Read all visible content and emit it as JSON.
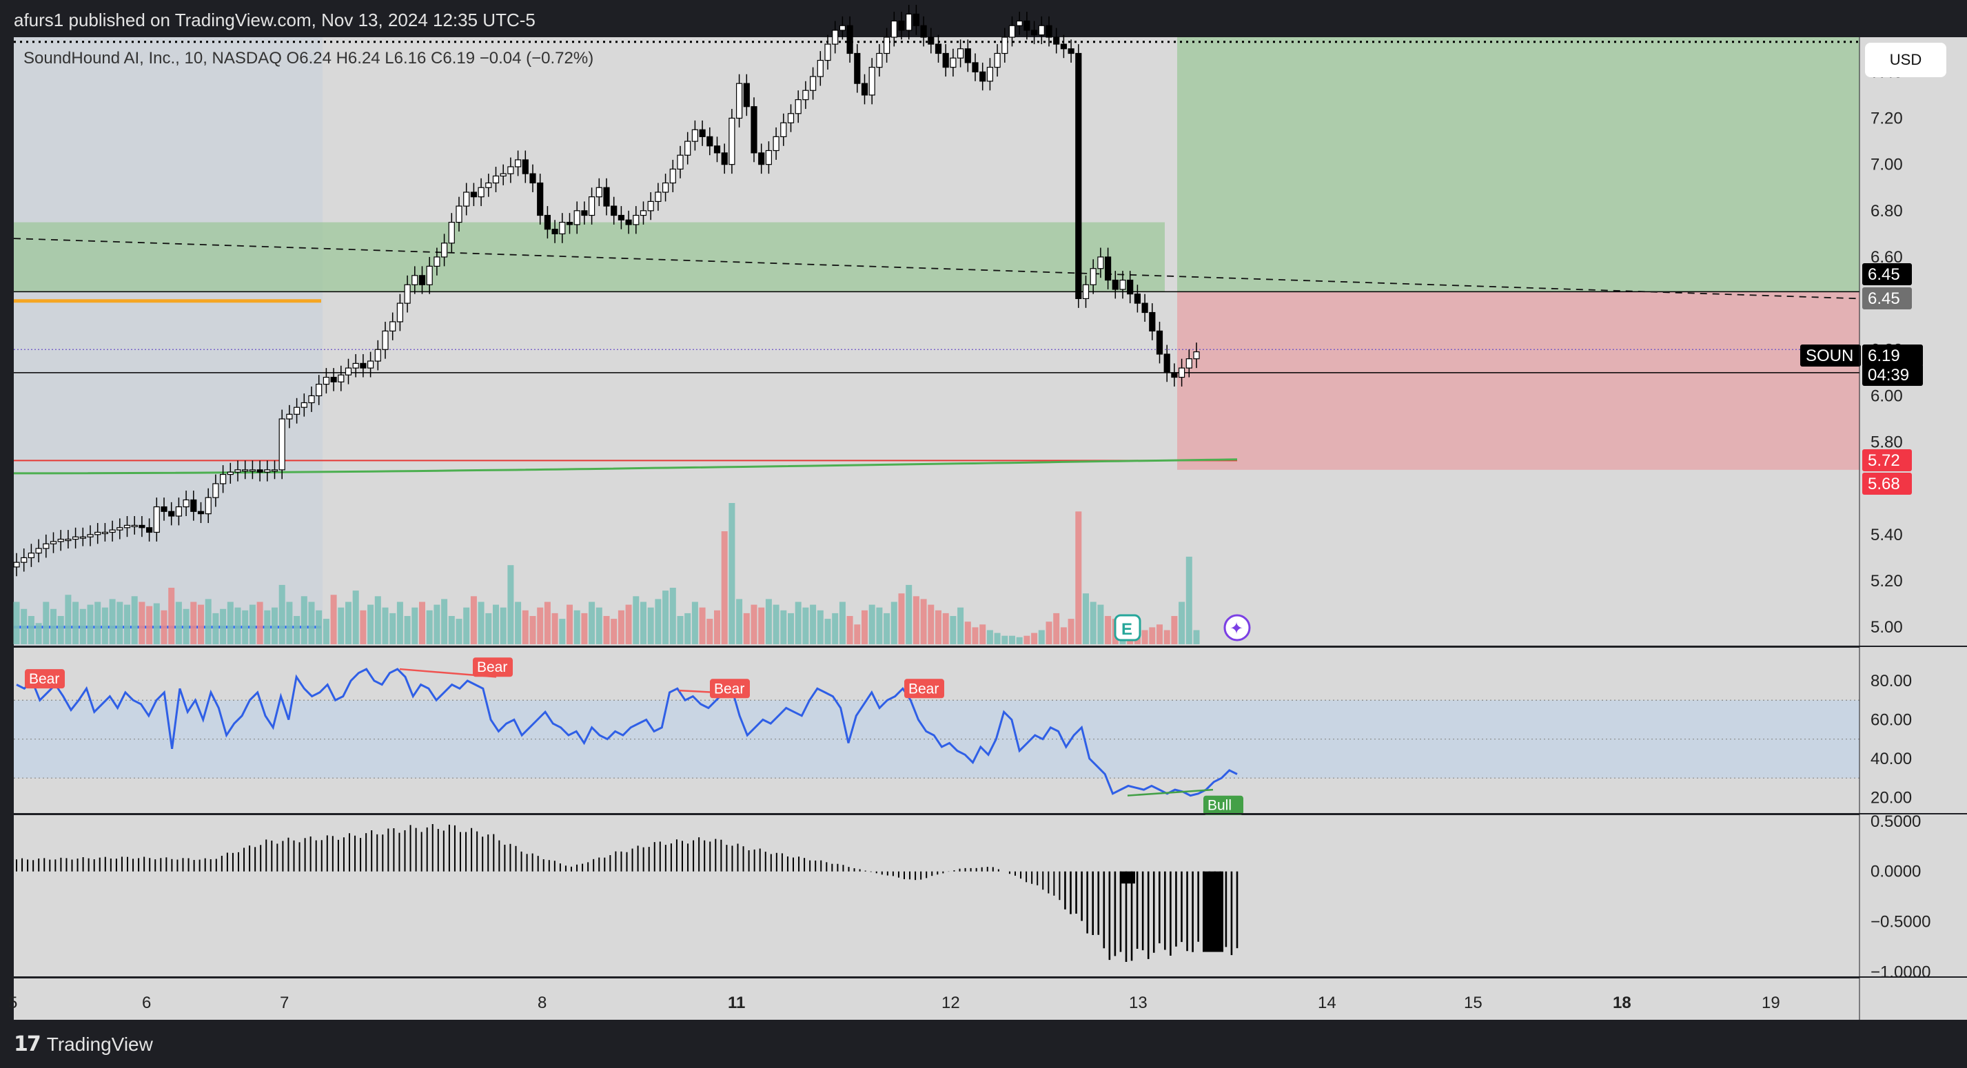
{
  "header": {
    "text": "afurs1 published on TradingView.com, Nov 13, 2024 12:35 UTC-5"
  },
  "footer": {
    "brand": "TradingView"
  },
  "currency": "USD",
  "colors": {
    "background": "#d9d9d9",
    "frame": "#1e1f24",
    "up_candle": "#ffffff",
    "down_candle": "#000000",
    "vol_up": "#7ec0b8",
    "vol_down": "#e58c8c",
    "rsi_line": "#2f5fe6",
    "rsi_band": "#c9d5e3",
    "profit_zone": "#9dc79b",
    "loss_zone": "#e6a3a7",
    "ema_line": "#4caf50",
    "bear_label": "#f05350",
    "bull_label": "#43a047",
    "blue_level": "#2962ff",
    "orange_level": "#f5a623"
  },
  "chart_data": [
    {
      "type": "candlestick",
      "title": "SoundHound AI, Inc., 10, NASDAQ",
      "ohlc_readout": {
        "open_label": "O",
        "open": "6.24",
        "high_label": "H",
        "high": "6.24",
        "low_label": "L",
        "low": "6.16",
        "close_label": "C",
        "close": "6.19",
        "change": "−0.04 (−0.72%)"
      },
      "ylim": [
        4.92,
        7.55
      ],
      "y_ticks": [
        "7.40",
        "7.20",
        "7.00",
        "6.80",
        "6.60",
        "6.40",
        "6.20",
        "6.00",
        "5.80",
        "5.60",
        "5.40",
        "5.20",
        "5.00"
      ],
      "x_ticks": [
        {
          "label": "5",
          "bold": false
        },
        {
          "label": "6",
          "bold": false
        },
        {
          "label": "7",
          "bold": false
        },
        {
          "label": "8",
          "bold": false
        },
        {
          "label": "11",
          "bold": true
        },
        {
          "label": "12",
          "bold": false
        },
        {
          "label": "13",
          "bold": false
        },
        {
          "label": "14",
          "bold": false
        },
        {
          "label": "15",
          "bold": false
        },
        {
          "label": "18",
          "bold": true
        },
        {
          "label": "19",
          "bold": false
        }
      ],
      "price_path": [
        [
          0,
          5.28
        ],
        [
          1,
          5.3
        ],
        [
          2,
          5.32
        ],
        [
          3,
          5.34
        ],
        [
          4,
          5.36
        ],
        [
          5,
          5.37
        ],
        [
          6,
          5.38
        ],
        [
          7,
          5.38
        ],
        [
          8,
          5.39
        ],
        [
          9,
          5.39
        ],
        [
          10,
          5.4
        ],
        [
          11,
          5.41
        ],
        [
          12,
          5.41
        ],
        [
          13,
          5.42
        ],
        [
          14,
          5.43
        ],
        [
          15,
          5.44
        ],
        [
          16,
          5.44
        ],
        [
          17,
          5.43
        ],
        [
          18,
          5.41
        ],
        [
          19,
          5.52
        ],
        [
          20,
          5.5
        ],
        [
          21,
          5.48
        ],
        [
          22,
          5.52
        ],
        [
          23,
          5.55
        ],
        [
          24,
          5.5
        ],
        [
          25,
          5.49
        ],
        [
          26,
          5.56
        ],
        [
          27,
          5.62
        ],
        [
          28,
          5.66
        ],
        [
          29,
          5.67
        ],
        [
          30,
          5.68
        ],
        [
          31,
          5.68
        ],
        [
          32,
          5.68
        ],
        [
          33,
          5.67
        ],
        [
          34,
          5.68
        ],
        [
          35,
          5.68
        ],
        [
          36,
          5.9
        ],
        [
          37,
          5.92
        ],
        [
          38,
          5.95
        ],
        [
          39,
          5.97
        ],
        [
          40,
          6.0
        ],
        [
          41,
          6.05
        ],
        [
          42,
          6.08
        ],
        [
          43,
          6.06
        ],
        [
          44,
          6.09
        ],
        [
          45,
          6.12
        ],
        [
          46,
          6.14
        ],
        [
          47,
          6.12
        ],
        [
          48,
          6.15
        ],
        [
          49,
          6.2
        ],
        [
          50,
          6.28
        ],
        [
          51,
          6.32
        ],
        [
          52,
          6.4
        ],
        [
          53,
          6.48
        ],
        [
          54,
          6.52
        ],
        [
          55,
          6.48
        ],
        [
          56,
          6.56
        ],
        [
          57,
          6.6
        ],
        [
          58,
          6.66
        ],
        [
          59,
          6.75
        ],
        [
          60,
          6.82
        ],
        [
          61,
          6.88
        ],
        [
          62,
          6.86
        ],
        [
          63,
          6.9
        ],
        [
          64,
          6.92
        ],
        [
          65,
          6.95
        ],
        [
          66,
          6.96
        ],
        [
          67,
          6.99
        ],
        [
          68,
          7.02
        ],
        [
          69,
          6.96
        ],
        [
          70,
          6.92
        ],
        [
          71,
          6.78
        ],
        [
          72,
          6.72
        ],
        [
          73,
          6.7
        ],
        [
          74,
          6.75
        ],
        [
          75,
          6.74
        ],
        [
          76,
          6.8
        ],
        [
          77,
          6.78
        ],
        [
          78,
          6.86
        ],
        [
          79,
          6.9
        ],
        [
          80,
          6.82
        ],
        [
          81,
          6.78
        ],
        [
          82,
          6.76
        ],
        [
          83,
          6.74
        ],
        [
          84,
          6.78
        ],
        [
          85,
          6.8
        ],
        [
          86,
          6.84
        ],
        [
          87,
          6.88
        ],
        [
          88,
          6.92
        ],
        [
          89,
          6.98
        ],
        [
          90,
          7.04
        ],
        [
          91,
          7.1
        ],
        [
          92,
          7.15
        ],
        [
          93,
          7.12
        ],
        [
          94,
          7.08
        ],
        [
          95,
          7.05
        ],
        [
          96,
          7.0
        ],
        [
          97,
          7.2
        ],
        [
          98,
          7.35
        ],
        [
          99,
          7.25
        ],
        [
          100,
          7.05
        ],
        [
          101,
          7.0
        ],
        [
          102,
          7.06
        ],
        [
          103,
          7.12
        ],
        [
          104,
          7.18
        ],
        [
          105,
          7.22
        ],
        [
          106,
          7.28
        ],
        [
          107,
          7.32
        ],
        [
          108,
          7.38
        ],
        [
          109,
          7.45
        ],
        [
          110,
          7.52
        ],
        [
          111,
          7.58
        ],
        [
          112,
          7.6
        ],
        [
          113,
          7.48
        ],
        [
          114,
          7.35
        ],
        [
          115,
          7.3
        ],
        [
          116,
          7.42
        ],
        [
          117,
          7.48
        ],
        [
          118,
          7.55
        ],
        [
          119,
          7.62
        ],
        [
          120,
          7.58
        ],
        [
          121,
          7.65
        ],
        [
          122,
          7.6
        ],
        [
          123,
          7.55
        ],
        [
          124,
          7.52
        ],
        [
          125,
          7.48
        ],
        [
          126,
          7.42
        ],
        [
          127,
          7.46
        ],
        [
          128,
          7.5
        ],
        [
          129,
          7.44
        ],
        [
          130,
          7.4
        ],
        [
          131,
          7.36
        ],
        [
          132,
          7.42
        ],
        [
          133,
          7.48
        ],
        [
          134,
          7.55
        ],
        [
          135,
          7.6
        ],
        [
          136,
          7.62
        ],
        [
          137,
          7.58
        ],
        [
          138,
          7.56
        ],
        [
          139,
          7.6
        ],
        [
          140,
          7.55
        ],
        [
          141,
          7.52
        ],
        [
          142,
          7.5
        ],
        [
          143,
          7.48
        ],
        [
          144,
          6.42
        ],
        [
          145,
          6.48
        ],
        [
          146,
          6.55
        ],
        [
          147,
          6.6
        ],
        [
          148,
          6.5
        ],
        [
          149,
          6.46
        ],
        [
          150,
          6.5
        ],
        [
          151,
          6.44
        ],
        [
          152,
          6.4
        ],
        [
          153,
          6.36
        ],
        [
          154,
          6.28
        ],
        [
          155,
          6.18
        ],
        [
          156,
          6.1
        ],
        [
          157,
          6.08
        ],
        [
          158,
          6.12
        ],
        [
          159,
          6.16
        ],
        [
          160,
          6.19
        ]
      ],
      "volume_ratios": [
        0.3,
        0.25,
        0.2,
        0.15,
        0.3,
        0.25,
        0.2,
        0.35,
        0.3,
        0.25,
        0.28,
        0.3,
        0.26,
        0.32,
        0.3,
        0.28,
        0.34,
        0.3,
        0.27,
        0.29,
        0.24,
        0.4,
        0.3,
        0.25,
        0.3,
        0.28,
        0.32,
        0.22,
        0.25,
        0.3,
        0.26,
        0.24,
        0.28,
        0.3,
        0.24,
        0.26,
        0.42,
        0.3,
        0.2,
        0.34,
        0.3,
        0.24,
        0.18,
        0.35,
        0.26,
        0.3,
        0.38,
        0.24,
        0.28,
        0.34,
        0.26,
        0.22,
        0.3,
        0.2,
        0.26,
        0.3,
        0.24,
        0.28,
        0.32,
        0.2,
        0.18,
        0.26,
        0.34,
        0.3,
        0.22,
        0.28,
        0.26,
        0.56,
        0.3,
        0.24,
        0.2,
        0.26,
        0.3,
        0.22,
        0.18,
        0.28,
        0.24,
        0.22,
        0.3,
        0.26,
        0.2,
        0.18,
        0.24,
        0.28,
        0.34,
        0.3,
        0.26,
        0.32,
        0.38,
        0.4,
        0.2,
        0.22,
        0.3,
        0.26,
        0.18,
        0.24,
        0.8,
        1.0,
        0.32,
        0.22,
        0.28,
        0.26,
        0.32,
        0.28,
        0.24,
        0.22,
        0.3,
        0.26,
        0.28,
        0.24,
        0.18,
        0.22,
        0.3,
        0.2,
        0.14,
        0.24,
        0.28,
        0.26,
        0.22,
        0.3,
        0.36,
        0.42,
        0.34,
        0.32,
        0.28,
        0.24,
        0.22,
        0.2,
        0.26,
        0.16,
        0.12,
        0.14,
        0.1,
        0.08,
        0.06,
        0.06,
        0.05,
        0.06,
        0.08,
        0.1,
        0.16,
        0.22,
        0.12,
        0.18,
        0.94,
        0.36,
        0.3,
        0.28,
        0.2,
        0.18,
        0.14,
        0.18,
        0.12,
        0.1,
        0.12,
        0.14,
        0.1,
        0.2,
        0.3,
        0.62,
        0.1
      ],
      "levels": {
        "entry": 6.45,
        "target": 6.75,
        "stop": 5.68,
        "support_red": 5.72,
        "upper_dotted": 7.53,
        "black_line_1": 6.45,
        "black_line_2": 6.1,
        "dotted_price": 6.2
      },
      "price_labels": [
        {
          "text": "6.45",
          "kind": "black"
        },
        {
          "text": "6.45",
          "kind": "gray"
        },
        {
          "text": "SOUN",
          "kind": "ticker"
        },
        {
          "text": "6.19",
          "kind": "last"
        },
        {
          "text": "04:39",
          "kind": "countdown"
        },
        {
          "text": "5.72",
          "kind": "red"
        },
        {
          "text": "5.68",
          "kind": "red"
        }
      ],
      "event_icons": [
        "E",
        "✦"
      ]
    },
    {
      "type": "line",
      "title": "RSI",
      "ylim": [
        12,
        97
      ],
      "y_ticks": [
        "80.00",
        "60.00",
        "40.00",
        "20.00"
      ],
      "band": [
        30,
        70
      ],
      "midline": 50,
      "values": [
        78,
        76,
        80,
        70,
        74,
        78,
        72,
        65,
        70,
        76,
        64,
        68,
        72,
        66,
        74,
        70,
        68,
        62,
        70,
        74,
        45,
        76,
        64,
        70,
        60,
        74,
        66,
        52,
        58,
        62,
        70,
        74,
        62,
        56,
        72,
        60,
        82,
        76,
        72,
        74,
        78,
        70,
        72,
        80,
        84,
        86,
        80,
        78,
        84,
        86,
        82,
        72,
        78,
        76,
        70,
        74,
        78,
        76,
        80,
        78,
        76,
        60,
        54,
        58,
        60,
        52,
        56,
        60,
        64,
        58,
        56,
        52,
        54,
        48,
        56,
        52,
        50,
        54,
        52,
        56,
        58,
        60,
        54,
        56,
        74,
        76,
        70,
        72,
        68,
        66,
        70,
        74,
        76,
        62,
        52,
        56,
        60,
        58,
        62,
        66,
        64,
        62,
        70,
        76,
        74,
        72,
        66,
        48,
        62,
        68,
        74,
        66,
        70,
        72,
        76,
        70,
        60,
        54,
        52,
        46,
        48,
        44,
        42,
        38,
        46,
        42,
        50,
        64,
        60,
        44,
        48,
        52,
        50,
        56,
        54,
        46,
        52,
        56,
        40,
        36,
        32,
        22,
        24,
        26,
        25,
        24,
        26,
        24,
        22,
        24,
        23,
        21,
        22,
        24,
        28,
        30,
        34,
        32
      ],
      "divergences": [
        {
          "label": "Bear",
          "type": "bear"
        },
        {
          "label": "Bear",
          "type": "bear"
        },
        {
          "label": "Bear",
          "type": "bear"
        },
        {
          "label": "Bear",
          "type": "bear"
        },
        {
          "label": "Bull",
          "type": "bull"
        }
      ]
    },
    {
      "type": "bar",
      "title": "Histogram",
      "ylim": [
        -1.05,
        0.56
      ],
      "y_ticks": [
        "0.5000",
        "0.0000",
        "−0.5000",
        "−1.0000"
      ],
      "envelope": [
        [
          0,
          0.13
        ],
        [
          20,
          0.15
        ],
        [
          35,
          0.13
        ],
        [
          45,
          0.32
        ],
        [
          60,
          0.38
        ],
        [
          70,
          0.46
        ],
        [
          78,
          0.48
        ],
        [
          85,
          0.4
        ],
        [
          92,
          0.2
        ],
        [
          100,
          0.05
        ],
        [
          108,
          0.2
        ],
        [
          115,
          0.3
        ],
        [
          125,
          0.35
        ],
        [
          132,
          0.25
        ],
        [
          140,
          0.16
        ],
        [
          148,
          0.08
        ],
        [
          155,
          -0.02
        ],
        [
          162,
          -0.1
        ],
        [
          170,
          0.03
        ],
        [
          176,
          0.05
        ],
        [
          180,
          -0.05
        ],
        [
          186,
          -0.22
        ],
        [
          192,
          -0.55
        ],
        [
          198,
          -0.95
        ],
        [
          206,
          -0.85
        ],
        [
          215,
          -0.8
        ],
        [
          220,
          -0.84
        ]
      ]
    }
  ]
}
